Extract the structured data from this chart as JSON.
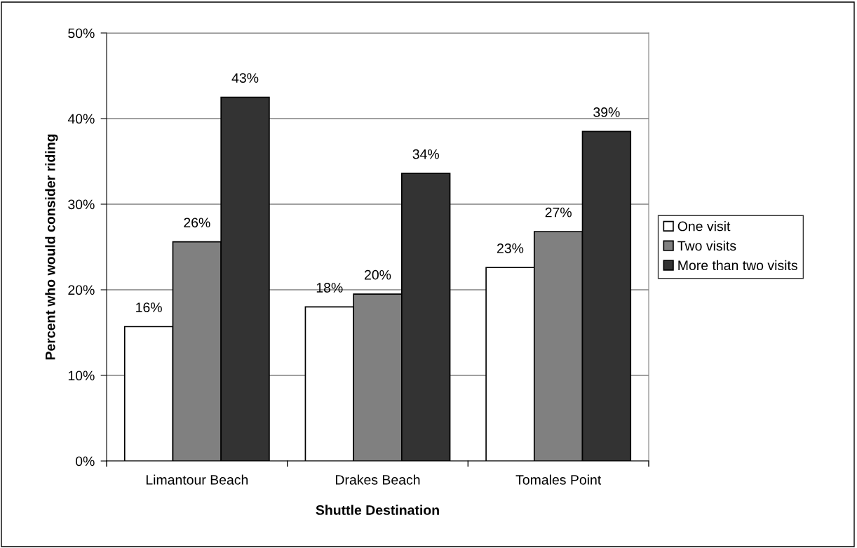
{
  "chart_data": {
    "type": "bar",
    "xlabel": "Shuttle Destination",
    "ylabel": "Percent who would consider riding",
    "categories": [
      "Limantour Beach",
      "Drakes Beach",
      "Tomales Point"
    ],
    "series": [
      {
        "name": "One visit",
        "color": "#ffffff",
        "values": [
          15.7,
          18.0,
          22.6
        ],
        "value_labels": [
          "16%",
          "18%",
          "23%"
        ]
      },
      {
        "name": "Two visits",
        "color": "#808080",
        "values": [
          25.6,
          19.5,
          26.8
        ],
        "value_labels": [
          "26%",
          "20%",
          "27%"
        ]
      },
      {
        "name": "More than two visits",
        "color": "#333333",
        "values": [
          42.5,
          33.6,
          38.5
        ],
        "value_labels": [
          "43%",
          "34%",
          "39%"
        ]
      }
    ],
    "ylim": [
      0,
      50
    ],
    "yticks": [
      {
        "value": 0,
        "label": "0%"
      },
      {
        "value": 10,
        "label": "10%"
      },
      {
        "value": 20,
        "label": "20%"
      },
      {
        "value": 30,
        "label": "30%"
      },
      {
        "value": 40,
        "label": "40%"
      },
      {
        "value": 50,
        "label": "50%"
      }
    ],
    "grid": "y",
    "legend": "right"
  }
}
